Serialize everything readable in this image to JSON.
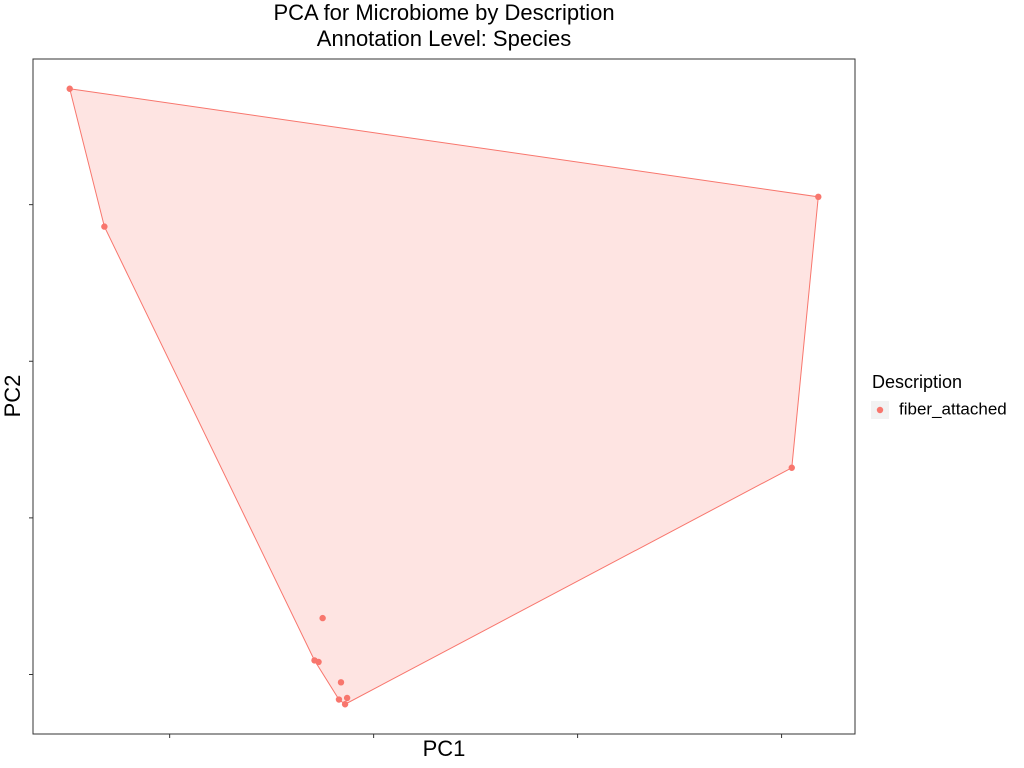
{
  "chart_data": {
    "type": "scatter",
    "title": "PCA for Microbiome by Description",
    "subtitle": "Annotation Level: Species",
    "x_label": "PC1",
    "y_label": "PC2",
    "legend_title": "Description",
    "xlim": [
      -2.67,
      1.36
    ],
    "ylim": [
      -2.38,
      1.93
    ],
    "xticks": [
      -2,
      -1,
      0,
      1
    ],
    "yticks": [
      -2,
      -1,
      0,
      1
    ],
    "hull": true,
    "series": [
      {
        "name": "fiber_attached",
        "color": "#F8766D",
        "x": [
          -2.49,
          -2.32,
          1.18,
          1.05,
          -1.25,
          -1.29,
          -1.27,
          -1.16,
          -1.17,
          -1.13,
          -1.14
        ],
        "y": [
          1.74,
          0.86,
          1.05,
          -0.68,
          -1.64,
          -1.91,
          -1.92,
          -2.05,
          -2.16,
          -2.15,
          -2.19
        ]
      }
    ]
  }
}
